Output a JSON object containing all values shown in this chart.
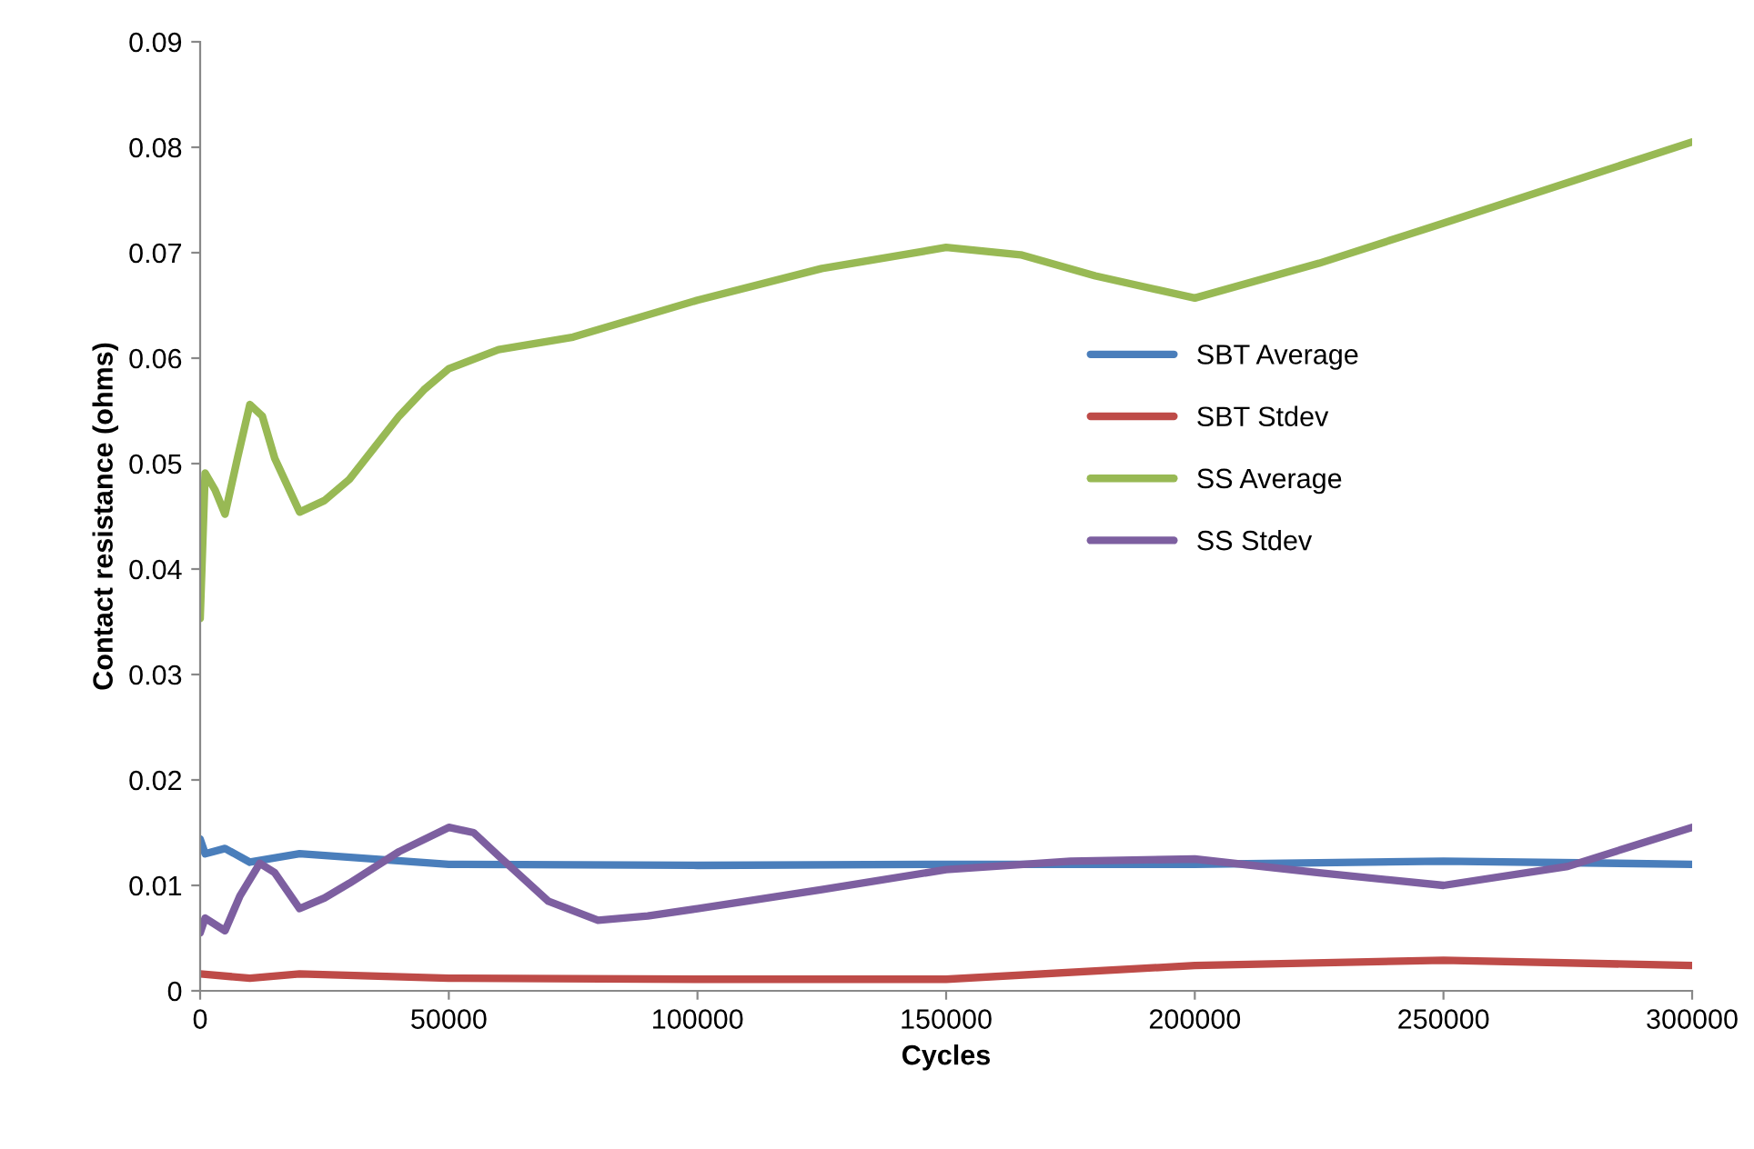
{
  "chart_data": {
    "type": "line",
    "xlabel": "Cycles",
    "ylabel": "Contact resistance (ohms)",
    "xlim": [
      0,
      300000
    ],
    "xticks": [
      0,
      50000,
      100000,
      150000,
      200000,
      250000,
      300000
    ],
    "ylim": [
      0,
      0.09
    ],
    "yticks": [
      0,
      0.01,
      0.02,
      0.03,
      0.04,
      0.05,
      0.06,
      0.07,
      0.08,
      0.09
    ],
    "grid": false,
    "legend": "right",
    "marker": "none",
    "line_style": "solid",
    "series": [
      {
        "name": "SBT Average",
        "color": "#4a7ebb",
        "x": [
          0,
          1000,
          5000,
          10000,
          20000,
          50000,
          100000,
          150000,
          200000,
          250000,
          300000
        ],
        "values": [
          0.0144,
          0.013,
          0.0135,
          0.0122,
          0.013,
          0.012,
          0.0119,
          0.012,
          0.012,
          0.0123,
          0.012
        ]
      },
      {
        "name": "SBT Stdev",
        "color": "#be4b48",
        "x": [
          0,
          10000,
          20000,
          50000,
          100000,
          150000,
          200000,
          250000,
          300000
        ],
        "values": [
          0.0016,
          0.0012,
          0.0016,
          0.0012,
          0.0011,
          0.0011,
          0.0024,
          0.0029,
          0.0024
        ]
      },
      {
        "name": "SS Average",
        "color": "#98b954",
        "x": [
          0,
          1000,
          3000,
          5000,
          7500,
          10000,
          12500,
          15000,
          20000,
          25000,
          30000,
          35000,
          40000,
          45000,
          50000,
          60000,
          75000,
          100000,
          125000,
          150000,
          165000,
          180000,
          200000,
          225000,
          250000,
          300000
        ],
        "values": [
          0.0353,
          0.0491,
          0.0475,
          0.0452,
          0.0505,
          0.0556,
          0.0545,
          0.0505,
          0.0454,
          0.0465,
          0.0485,
          0.0515,
          0.0545,
          0.057,
          0.059,
          0.0608,
          0.062,
          0.0655,
          0.0685,
          0.0705,
          0.0698,
          0.0678,
          0.0657,
          0.069,
          0.0728,
          0.0805
        ]
      },
      {
        "name": "SS Stdev",
        "color": "#7d5fa0",
        "x": [
          0,
          1000,
          5000,
          8000,
          12000,
          15000,
          20000,
          25000,
          30000,
          40000,
          50000,
          55000,
          60000,
          70000,
          80000,
          90000,
          100000,
          125000,
          150000,
          175000,
          200000,
          225000,
          250000,
          275000,
          300000
        ],
        "values": [
          0.0055,
          0.0069,
          0.0057,
          0.009,
          0.0121,
          0.0112,
          0.0078,
          0.0088,
          0.0102,
          0.0132,
          0.0155,
          0.015,
          0.0128,
          0.0085,
          0.0067,
          0.0071,
          0.0078,
          0.0096,
          0.0115,
          0.0123,
          0.0125,
          0.0112,
          0.01,
          0.0118,
          0.0155
        ]
      }
    ]
  }
}
